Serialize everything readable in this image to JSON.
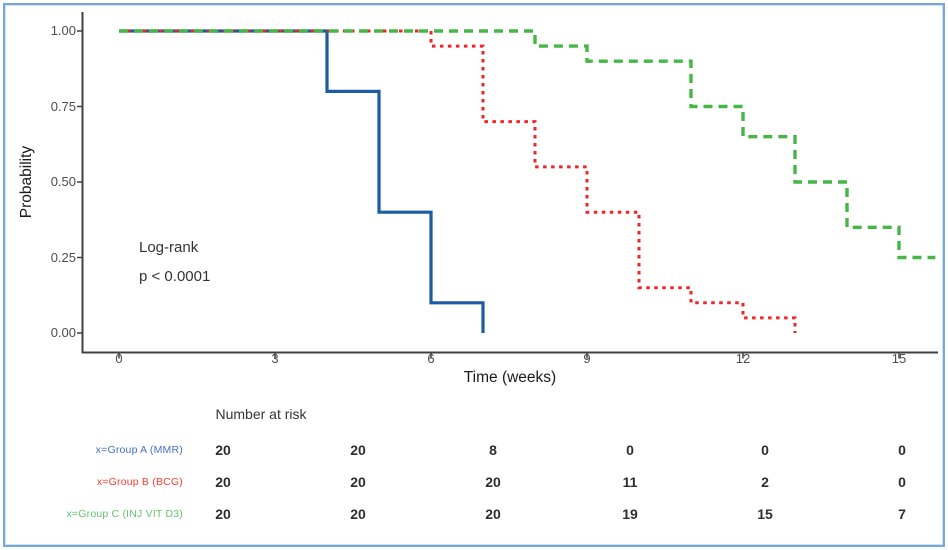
{
  "figure": {
    "border_color": "#76A7DB",
    "background": "#FFFFFF",
    "axis_color": "#404040",
    "tick_label_color": "#4d4d4d"
  },
  "chart_data": {
    "type": "line",
    "subtype": "kaplan-meier-step-curves",
    "title": "",
    "xlabel": "Time (weeks)",
    "ylabel": "Probability",
    "xlim": [
      0,
      15.7
    ],
    "ylim": [
      0,
      1
    ],
    "xticks": [
      "0",
      "3",
      "6",
      "9",
      "12",
      "15"
    ],
    "yticks": [
      "1.00",
      "0.75",
      "0.50",
      "0.25",
      "0.00"
    ],
    "ytick_values": [
      1.0,
      0.75,
      0.5,
      0.25,
      0.0
    ],
    "grid": false,
    "legend_position": "none",
    "annotation_line1": "Log-rank",
    "annotation_line2": "p < 0.0001",
    "series": [
      {
        "name": "Group A (MMR)",
        "color": "#1D5BA4",
        "style": "solid",
        "width": 3.2,
        "steps": [
          [
            0,
            1.0
          ],
          [
            4,
            0.8
          ],
          [
            5,
            0.4
          ],
          [
            6,
            0.1
          ],
          [
            7,
            0.0
          ]
        ],
        "end": 7
      },
      {
        "name": "Group B (BCG)",
        "color": "#EE2426",
        "style": "dotted",
        "width": 3,
        "steps": [
          [
            0,
            1.0
          ],
          [
            6,
            0.95
          ],
          [
            7,
            0.7
          ],
          [
            8,
            0.55
          ],
          [
            9,
            0.4
          ],
          [
            10,
            0.15
          ],
          [
            11,
            0.1
          ],
          [
            12,
            0.05
          ],
          [
            13,
            0.0
          ]
        ],
        "end": 13
      },
      {
        "name": "Group C (INJ VIT D3)",
        "color": "#46B746",
        "style": "dashed",
        "width": 3.4,
        "steps": [
          [
            0,
            1.0
          ],
          [
            8,
            0.95
          ],
          [
            9,
            0.9
          ],
          [
            11,
            0.75
          ],
          [
            12,
            0.65
          ],
          [
            13,
            0.5
          ],
          [
            14,
            0.35
          ],
          [
            15,
            0.25
          ]
        ],
        "end": 15.7
      }
    ],
    "risk_table": {
      "title": "Number at risk",
      "times": [
        0,
        3,
        6,
        9,
        12,
        15
      ],
      "rows": [
        {
          "label": "x=Group A (MMR)",
          "color": "#4472C4",
          "values": [
            "20",
            "20",
            "8",
            "0",
            "0",
            "0"
          ]
        },
        {
          "label": "x=Group B (BCG)",
          "color": "#FF3B30",
          "values": [
            "20",
            "20",
            "20",
            "11",
            "2",
            "0"
          ]
        },
        {
          "label": "x=Group C (INJ VIT D3)",
          "color": "#63C46F",
          "values": [
            "20",
            "20",
            "20",
            "19",
            "15",
            "7"
          ]
        }
      ]
    }
  }
}
